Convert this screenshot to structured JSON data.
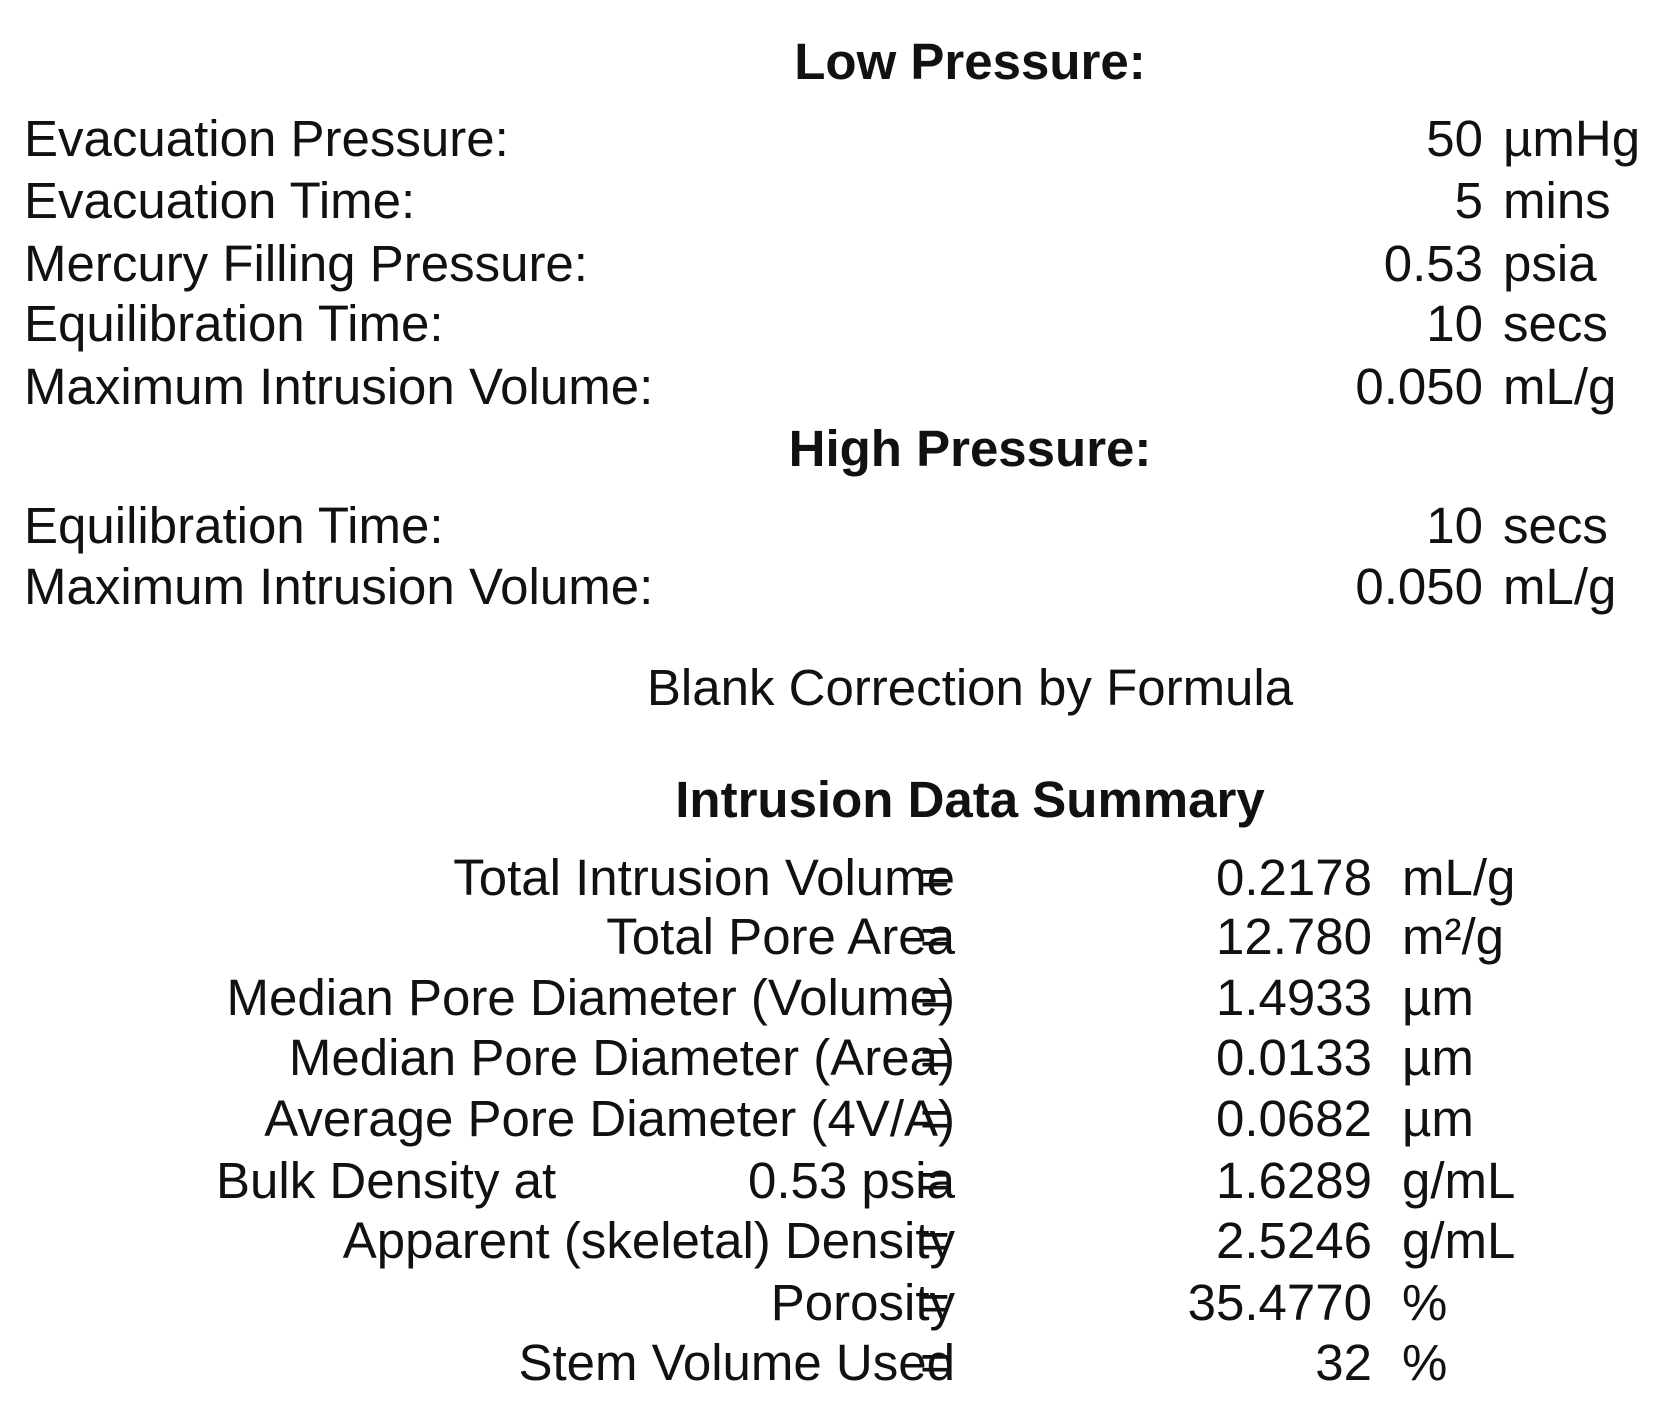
{
  "low_pressure": {
    "title": "Low Pressure:",
    "rows": [
      {
        "label": "Evacuation Pressure:",
        "value": "50",
        "unit": "µmHg"
      },
      {
        "label": "Evacuation Time:",
        "value": "5",
        "unit": "mins"
      },
      {
        "label": "Mercury Filling Pressure:",
        "value": "0.53",
        "unit": "psia"
      },
      {
        "label": "Equilibration Time:",
        "value": "10",
        "unit": "secs"
      },
      {
        "label": "Maximum Intrusion Volume:",
        "value": "0.050",
        "unit": "mL/g"
      }
    ]
  },
  "high_pressure": {
    "title": "High Pressure:",
    "rows": [
      {
        "label": "Equilibration Time:",
        "value": "10",
        "unit": "secs"
      },
      {
        "label": "Maximum Intrusion Volume:",
        "value": "0.050",
        "unit": "mL/g"
      }
    ]
  },
  "blank_correction": "Blank Correction by Formula",
  "summary": {
    "title": "Intrusion Data Summary",
    "equals": "=",
    "rows": [
      {
        "label": "Total Intrusion Volume",
        "value": "0.2178",
        "unit": "mL/g"
      },
      {
        "label": "Total Pore Area",
        "value": "12.780",
        "unit": "m²/g"
      },
      {
        "label": "Median Pore Diameter (Volume)",
        "value": "1.4933",
        "unit": "µm"
      },
      {
        "label": "Median Pore Diameter (Area)",
        "value": "0.0133",
        "unit": "µm"
      },
      {
        "label": "Average Pore Diameter (4V/A)",
        "value": "0.0682",
        "unit": "µm"
      },
      {
        "label": "Bulk Density at",
        "label_pressure": "0.53 psia",
        "value": "1.6289",
        "unit": "g/mL"
      },
      {
        "label": "Apparent (skeletal) Density",
        "value": "2.5246",
        "unit": "g/mL"
      },
      {
        "label": "Porosity",
        "value": "35.4770",
        "unit": "%"
      },
      {
        "label": "Stem Volume Used",
        "value": "32",
        "unit": "%"
      }
    ]
  }
}
